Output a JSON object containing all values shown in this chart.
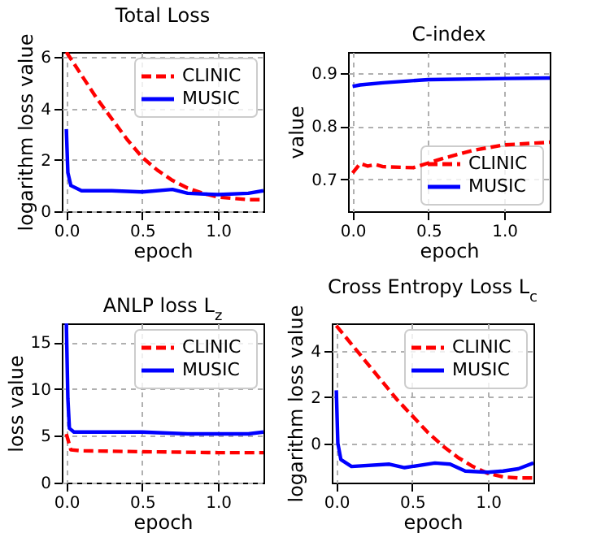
{
  "chart_data": [
    {
      "type": "line",
      "title": "Total Loss",
      "xlabel": "epoch",
      "ylabel": "logarithm loss value",
      "xlim": [
        -0.03,
        1.3
      ],
      "xticks": [
        {
          "value": 0,
          "label": "0.0"
        },
        {
          "value": 0.5,
          "label": "0.5"
        },
        {
          "value": 1,
          "label": "1.0"
        }
      ],
      "ylim": [
        0,
        6.2
      ],
      "yticks": [
        0,
        2,
        4,
        6
      ],
      "grid": true,
      "legend": "top right",
      "series": [
        {
          "name": "CLINIC",
          "color": "#ff0000",
          "line_style": "dashed",
          "x": [
            0,
            0.1,
            0.2,
            0.3,
            0.4,
            0.5,
            0.6,
            0.7,
            0.8,
            0.9,
            1.0,
            1.1,
            1.2,
            1.3
          ],
          "values": [
            6.2,
            5.3,
            4.4,
            3.6,
            2.8,
            2.1,
            1.6,
            1.2,
            0.9,
            0.7,
            0.55,
            0.5,
            0.45,
            0.45
          ]
        },
        {
          "name": "MUSIC",
          "color": "#0000ff",
          "line_style": "solid",
          "x": [
            0,
            0.01,
            0.03,
            0.1,
            0.3,
            0.5,
            0.7,
            0.8,
            1.0,
            1.2,
            1.3
          ],
          "values": [
            3.2,
            1.5,
            1.0,
            0.8,
            0.8,
            0.75,
            0.85,
            0.7,
            0.65,
            0.7,
            0.8
          ]
        }
      ]
    },
    {
      "type": "line",
      "title": "C-index",
      "xlabel": "epoch",
      "ylabel": "value",
      "xlim": [
        -0.03,
        1.3
      ],
      "xticks": [
        {
          "value": 0,
          "label": "0.0"
        },
        {
          "value": 0.5,
          "label": "0.5"
        },
        {
          "value": 1,
          "label": "1.0"
        }
      ],
      "ylim": [
        0.64,
        0.94
      ],
      "yticks": [
        {
          "value": 0.7,
          "label": "0.7"
        },
        {
          "value": 0.8,
          "label": "0.8"
        },
        {
          "value": 0.9,
          "label": "0.9"
        }
      ],
      "grid": true,
      "legend": "bottom right",
      "series": [
        {
          "name": "CLINIC",
          "color": "#ff0000",
          "line_style": "dashed",
          "x": [
            0,
            0.05,
            0.1,
            0.15,
            0.2,
            0.4,
            0.6,
            0.8,
            1.0,
            1.3
          ],
          "values": [
            0.712,
            0.73,
            0.725,
            0.728,
            0.724,
            0.722,
            0.74,
            0.755,
            0.765,
            0.77
          ]
        },
        {
          "name": "MUSIC",
          "color": "#0000ff",
          "line_style": "solid",
          "x": [
            0,
            0.05,
            0.2,
            0.5,
            1.0,
            1.3
          ],
          "values": [
            0.875,
            0.878,
            0.882,
            0.888,
            0.89,
            0.891
          ]
        }
      ]
    },
    {
      "type": "line",
      "title": "ANLP loss L$_{z}$",
      "xlabel": "epoch",
      "ylabel": "loss value",
      "xlim": [
        -0.03,
        1.3
      ],
      "xticks": [
        {
          "value": 0,
          "label": "0.0"
        },
        {
          "value": 0.5,
          "label": "0.5"
        },
        {
          "value": 1,
          "label": "1.0"
        }
      ],
      "ylim": [
        0,
        17
      ],
      "yticks": [
        0,
        5,
        10,
        15
      ],
      "grid": true,
      "legend": "top right",
      "series": [
        {
          "name": "CLINIC",
          "color": "#ff0000",
          "line_style": "dashed",
          "x": [
            0,
            0.03,
            0.1,
            0.5,
            1.0,
            1.3
          ],
          "values": [
            5.2,
            3.5,
            3.4,
            3.3,
            3.2,
            3.2
          ]
        },
        {
          "name": "MUSIC",
          "color": "#0000ff",
          "line_style": "solid",
          "x": [
            0,
            0.01,
            0.02,
            0.05,
            0.5,
            0.8,
            1.2,
            1.3
          ],
          "values": [
            17,
            9,
            5.8,
            5.4,
            5.4,
            5.2,
            5.2,
            5.4
          ]
        }
      ]
    },
    {
      "type": "line",
      "title": "Cross Entropy Loss L$_{c}$",
      "xlabel": "epoch",
      "ylabel": "logarithm loss value",
      "xlim": [
        -0.03,
        1.3
      ],
      "xticks": [
        {
          "value": 0,
          "label": "0.0"
        },
        {
          "value": 0.5,
          "label": "0.5"
        },
        {
          "value": 1,
          "label": "1.0"
        }
      ],
      "ylim": [
        -1.7,
        5.2
      ],
      "yticks": [
        0,
        2,
        4
      ],
      "grid": true,
      "legend": "top right",
      "series": [
        {
          "name": "CLINIC",
          "color": "#ff0000",
          "line_style": "dashed",
          "x": [
            0,
            0.1,
            0.2,
            0.3,
            0.4,
            0.5,
            0.6,
            0.7,
            0.8,
            0.9,
            1.0,
            1.1,
            1.2,
            1.3
          ],
          "values": [
            5.1,
            4.3,
            3.5,
            2.7,
            1.9,
            1.2,
            0.5,
            -0.1,
            -0.6,
            -1.0,
            -1.3,
            -1.45,
            -1.5,
            -1.5
          ]
        },
        {
          "name": "MUSIC",
          "color": "#0000ff",
          "line_style": "solid",
          "x": [
            0,
            0.01,
            0.03,
            0.1,
            0.35,
            0.45,
            0.65,
            0.75,
            0.85,
            1.0,
            1.1,
            1.2,
            1.3
          ],
          "values": [
            2.3,
            0,
            -0.7,
            -1.0,
            -0.9,
            -1.05,
            -0.85,
            -0.9,
            -1.2,
            -1.25,
            -1.2,
            -1.1,
            -0.85
          ]
        }
      ]
    }
  ]
}
